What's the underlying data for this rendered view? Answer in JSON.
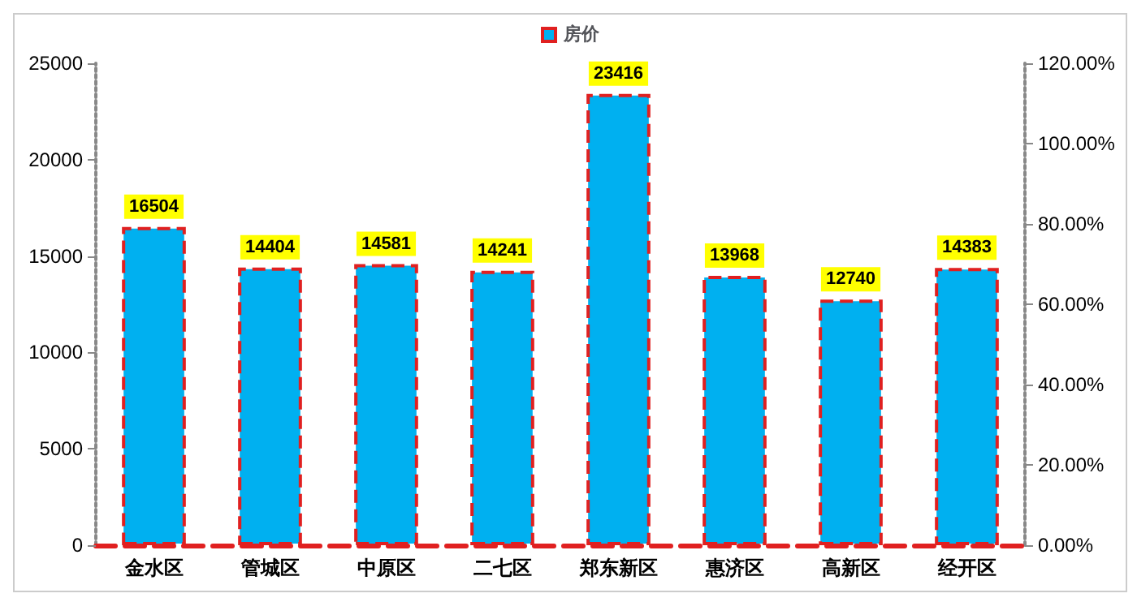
{
  "chart_data": {
    "type": "bar",
    "categories": [
      "金水区",
      "管城区",
      "中原区",
      "二七区",
      "郑东新区",
      "惠济区",
      "高新区",
      "经开区"
    ],
    "series": [
      {
        "name": "房价",
        "color": "#00b0f0",
        "values": [
          16504,
          14404,
          14581,
          14241,
          23416,
          13968,
          12740,
          14383
        ]
      }
    ],
    "ylim": [
      0,
      25000
    ],
    "yticks": [
      0,
      5000,
      10000,
      15000,
      20000,
      25000
    ],
    "y2lim": [
      0,
      120
    ],
    "y2ticks": [
      {
        "value": 0,
        "label": "0.00%"
      },
      {
        "value": 20,
        "label": "20.00%"
      },
      {
        "value": 40,
        "label": "40.00%"
      },
      {
        "value": 60,
        "label": "60.00%"
      },
      {
        "value": 80,
        "label": "80.00%"
      },
      {
        "value": 100,
        "label": "100.00%"
      },
      {
        "value": 120,
        "label": "120.00%"
      }
    ],
    "data_labels": true,
    "legend": "top",
    "grid": false
  }
}
